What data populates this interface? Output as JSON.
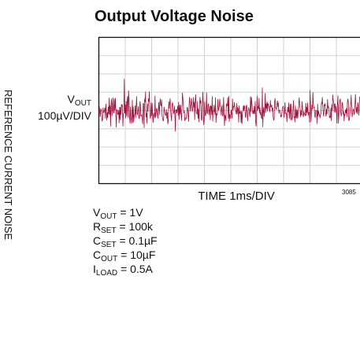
{
  "title": "Output Voltage Noise",
  "side_label": "REFERENCE CURRENT NOISE",
  "y_label": {
    "symbol": "V",
    "sub": "OUT",
    "scale": "100µV/DIV"
  },
  "x_label": "TIME 1ms/DIV",
  "figure_code": "3085",
  "conditions": [
    {
      "symbol": "V",
      "sub": "OUT",
      "rest": " = 1V"
    },
    {
      "symbol": "R",
      "sub": "SET",
      "rest": " = 100k"
    },
    {
      "symbol": "C",
      "sub": "SET",
      "rest": " = 0.1µF"
    },
    {
      "symbol": "C",
      "sub": "OUT",
      "rest": " = 10µF"
    },
    {
      "symbol": "I",
      "sub": "LOAD",
      "rest": " = 0.5A"
    }
  ]
}
